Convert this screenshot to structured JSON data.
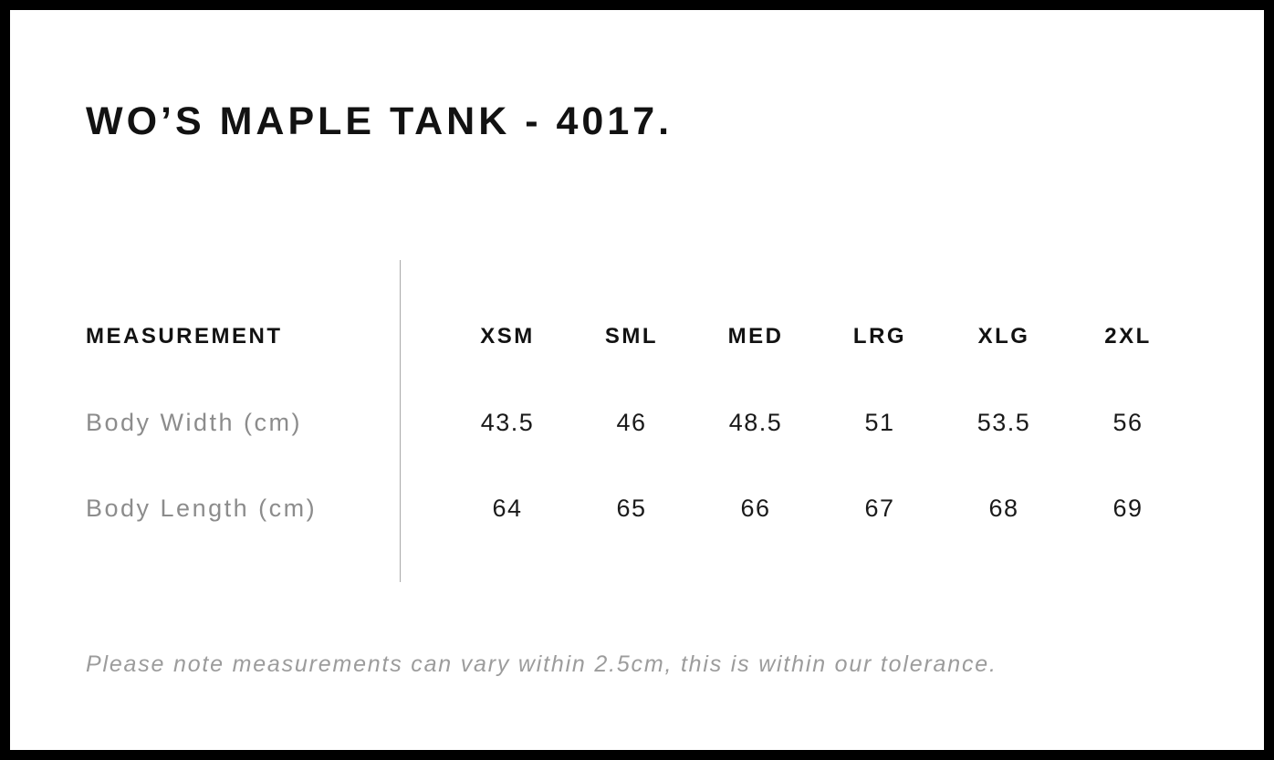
{
  "title": "WO’S MAPLE TANK - 4017.",
  "table": {
    "measurement_header": "MEASUREMENT",
    "columns": [
      "XSM",
      "SML",
      "MED",
      "LRG",
      "XLG",
      "2XL"
    ],
    "rows": [
      {
        "label": "Body Width (cm)",
        "values": [
          "43.5",
          "46",
          "48.5",
          "51",
          "53.5",
          "56"
        ]
      },
      {
        "label": "Body Length (cm)",
        "values": [
          "64",
          "65",
          "66",
          "67",
          "68",
          "69"
        ]
      }
    ]
  },
  "note": "Please note measurements can vary within 2.5cm, this is within our tolerance.",
  "colors": {
    "border": "#000000",
    "text_primary": "#121212",
    "row_label_gray": "#8c8c8c",
    "note_gray": "#9c9c9c",
    "divider_gray": "#a9a9a9"
  }
}
